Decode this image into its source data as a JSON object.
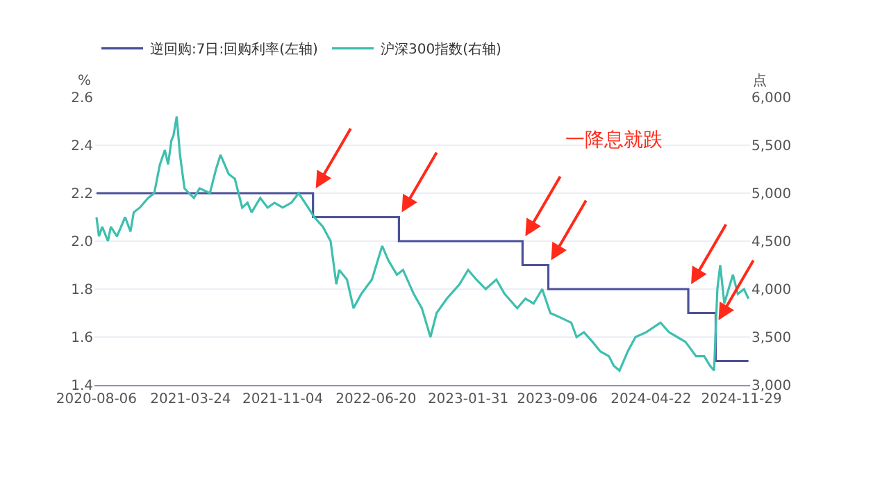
{
  "chart_data": {
    "type": "line",
    "ylabel": "%",
    "y2label": "点",
    "annotations": [
      "一降息就跌"
    ],
    "series": [
      {
        "name": "逆回购:7日:回购利率(左轴)",
        "type": "step",
        "color": "#4b5199",
        "x": [
          "2020-08-06",
          "2022-01-17",
          "2022-08-15",
          "2023-06-13",
          "2023-08-15",
          "2024-07-22",
          "2024-09-27",
          "2024-12-16"
        ],
        "values": [
          2.2,
          2.1,
          2.0,
          1.9,
          1.8,
          1.7,
          1.5,
          1.5
        ]
      },
      {
        "name": "沪深300指数(右轴)",
        "axis": "y2",
        "color": "#3dbfae",
        "x": [
          "2020-08-06",
          "2020-08-12",
          "2020-08-20",
          "2020-09-03",
          "2020-09-10",
          "2020-09-25",
          "2020-10-15",
          "2020-10-28",
          "2020-11-05",
          "2020-11-20",
          "2020-12-10",
          "2020-12-25",
          "2021-01-08",
          "2021-01-20",
          "2021-01-28",
          "2021-02-05",
          "2021-02-10",
          "2021-02-18",
          "2021-02-26",
          "2021-03-09",
          "2021-03-20",
          "2021-04-01",
          "2021-04-15",
          "2021-05-10",
          "2021-05-25",
          "2021-06-05",
          "2021-06-25",
          "2021-07-10",
          "2021-07-28",
          "2021-08-10",
          "2021-08-20",
          "2021-09-10",
          "2021-09-28",
          "2021-10-15",
          "2021-11-04",
          "2021-11-25",
          "2021-12-13",
          "2022-01-05",
          "2022-01-20",
          "2022-02-10",
          "2022-03-01",
          "2022-03-15",
          "2022-03-22",
          "2022-04-10",
          "2022-04-26",
          "2022-05-15",
          "2022-06-10",
          "2022-07-05",
          "2022-07-20",
          "2022-08-10",
          "2022-08-25",
          "2022-09-20",
          "2022-10-10",
          "2022-10-31",
          "2022-11-15",
          "2022-12-10",
          "2023-01-10",
          "2023-01-31",
          "2023-02-20",
          "2023-03-15",
          "2023-04-10",
          "2023-04-30",
          "2023-05-31",
          "2023-06-20",
          "2023-07-10",
          "2023-07-31",
          "2023-08-20",
          "2023-09-15",
          "2023-10-10",
          "2023-10-23",
          "2023-11-10",
          "2023-12-01",
          "2023-12-20",
          "2024-01-10",
          "2024-01-22",
          "2024-02-05",
          "2024-02-25",
          "2024-03-15",
          "2024-04-10",
          "2024-05-15",
          "2024-06-05",
          "2024-06-25",
          "2024-07-15",
          "2024-08-10",
          "2024-08-30",
          "2024-09-13",
          "2024-09-23",
          "2024-10-01",
          "2024-10-08",
          "2024-10-18",
          "2024-11-08",
          "2024-11-20",
          "2024-12-05",
          "2024-12-16"
        ],
        "values": [
          4750,
          4550,
          4650,
          4500,
          4650,
          4550,
          4750,
          4600,
          4800,
          4850,
          4950,
          5000,
          5300,
          5450,
          5300,
          5550,
          5600,
          5800,
          5400,
          5050,
          5000,
          4950,
          5050,
          5000,
          5250,
          5400,
          5200,
          5150,
          4850,
          4900,
          4800,
          4950,
          4850,
          4900,
          4850,
          4900,
          5000,
          4850,
          4750,
          4650,
          4500,
          4050,
          4200,
          4100,
          3800,
          3950,
          4100,
          4450,
          4300,
          4150,
          4200,
          3950,
          3800,
          3500,
          3750,
          3900,
          4050,
          4200,
          4100,
          4000,
          4100,
          3950,
          3800,
          3900,
          3850,
          4000,
          3750,
          3700,
          3650,
          3500,
          3550,
          3450,
          3350,
          3300,
          3200,
          3150,
          3350,
          3500,
          3550,
          3650,
          3550,
          3500,
          3450,
          3300,
          3300,
          3200,
          3150,
          4000,
          4250,
          3850,
          4150,
          3950,
          4000,
          3900
        ]
      }
    ],
    "xlim": [
      "2020-08-01",
      "2024-12-20"
    ],
    "xticks": [
      "2020-08-06",
      "2021-03-24",
      "2021-11-04",
      "2022-06-20",
      "2023-01-31",
      "2023-09-06",
      "2024-04-22",
      "2024-11-29"
    ],
    "ylim": [
      1.4,
      2.6
    ],
    "yticks": [
      1.4,
      1.6,
      1.8,
      {
        "value": 2,
        "label": "2.0"
      },
      2.2,
      2.4,
      2.6
    ],
    "y2lim": [
      3000,
      6000
    ],
    "y2ticks": [
      {
        "value": 3000,
        "label": "3,000"
      },
      {
        "value": 3500,
        "label": "3,500"
      },
      {
        "value": 4000,
        "label": "4,000"
      },
      {
        "value": 4500,
        "label": "4,500"
      },
      {
        "value": 5000,
        "label": "5,000"
      },
      {
        "value": 5500,
        "label": "5,500"
      },
      {
        "value": 6000,
        "label": "6,000"
      }
    ],
    "grid": "y",
    "legend": "top left"
  }
}
